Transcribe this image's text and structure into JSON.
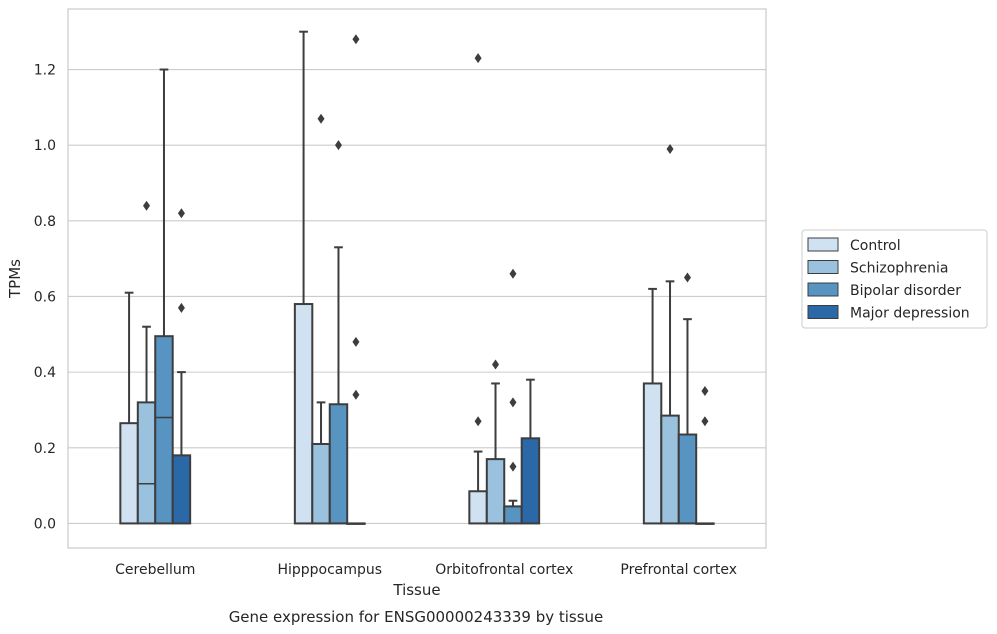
{
  "chart_data": {
    "type": "box",
    "title": "",
    "caption": "Gene expression for ENSG00000243339 by tissue",
    "xlabel": "Tissue",
    "ylabel": "TPMs",
    "ylim": [
      -0.065,
      1.36
    ],
    "yticks": [
      "0.0",
      "0.2",
      "0.4",
      "0.6",
      "0.8",
      "1.0",
      "1.2"
    ],
    "ytick_values": [
      0.0,
      0.2,
      0.4,
      0.6,
      0.8,
      1.0,
      1.2
    ],
    "grid": "horizontal",
    "legend_placement": "right",
    "categories": [
      "Cerebellum",
      "Hipppocampus",
      "Orbitofrontal cortex",
      "Prefrontal cortex"
    ],
    "series": [
      {
        "name": "Control",
        "color": "#d0e1f2",
        "boxes": [
          {
            "q1": 0.0,
            "median": 0.0,
            "q3": 0.265,
            "whisker_low": 0.0,
            "whisker_high": 0.61,
            "outliers": []
          },
          {
            "q1": 0.0,
            "median": 0.0,
            "q3": 0.58,
            "whisker_low": 0.0,
            "whisker_high": 1.3,
            "outliers": []
          },
          {
            "q1": 0.0,
            "median": 0.0,
            "q3": 0.085,
            "whisker_low": 0.0,
            "whisker_high": 0.19,
            "outliers": [
              0.27,
              1.23
            ]
          },
          {
            "q1": 0.0,
            "median": 0.0,
            "q3": 0.37,
            "whisker_low": 0.0,
            "whisker_high": 0.62,
            "outliers": []
          }
        ]
      },
      {
        "name": "Schizophrenia",
        "color": "#9ac2df",
        "boxes": [
          {
            "q1": 0.0,
            "median": 0.105,
            "q3": 0.32,
            "whisker_low": 0.0,
            "whisker_high": 0.52,
            "outliers": [
              0.84
            ]
          },
          {
            "q1": 0.0,
            "median": 0.0,
            "q3": 0.21,
            "whisker_low": 0.0,
            "whisker_high": 0.32,
            "outliers": [
              1.07
            ]
          },
          {
            "q1": 0.0,
            "median": 0.0,
            "q3": 0.17,
            "whisker_low": 0.0,
            "whisker_high": 0.37,
            "outliers": [
              0.42
            ]
          },
          {
            "q1": 0.0,
            "median": 0.0,
            "q3": 0.285,
            "whisker_low": 0.0,
            "whisker_high": 0.64,
            "outliers": [
              0.99
            ]
          }
        ]
      },
      {
        "name": "Bipolar disorder",
        "color": "#5794c2",
        "boxes": [
          {
            "q1": 0.0,
            "median": 0.28,
            "q3": 0.495,
            "whisker_low": 0.0,
            "whisker_high": 1.2,
            "outliers": []
          },
          {
            "q1": 0.0,
            "median": 0.0,
            "q3": 0.315,
            "whisker_low": 0.0,
            "whisker_high": 0.73,
            "outliers": [
              1.0
            ]
          },
          {
            "q1": 0.0,
            "median": 0.0,
            "q3": 0.045,
            "whisker_low": 0.0,
            "whisker_high": 0.06,
            "outliers": [
              0.15,
              0.32,
              0.66
            ]
          },
          {
            "q1": 0.0,
            "median": 0.0,
            "q3": 0.235,
            "whisker_low": 0.0,
            "whisker_high": 0.54,
            "outliers": [
              0.65
            ]
          }
        ]
      },
      {
        "name": "Major depression",
        "color": "#2a68a8",
        "boxes": [
          {
            "q1": 0.0,
            "median": 0.0,
            "q3": 0.18,
            "whisker_low": 0.0,
            "whisker_high": 0.4,
            "outliers": [
              0.57,
              0.82
            ]
          },
          {
            "q1": 0.0,
            "median": 0.0,
            "q3": 0.0,
            "whisker_low": 0.0,
            "whisker_high": 0.0,
            "outliers": [
              0.34,
              0.48,
              1.28
            ]
          },
          {
            "q1": 0.0,
            "median": 0.0,
            "q3": 0.225,
            "whisker_low": 0.0,
            "whisker_high": 0.38,
            "outliers": []
          },
          {
            "q1": 0.0,
            "median": 0.0,
            "q3": 0.0,
            "whisker_low": 0.0,
            "whisker_high": 0.0,
            "outliers": [
              0.27,
              0.35
            ]
          }
        ]
      }
    ]
  }
}
